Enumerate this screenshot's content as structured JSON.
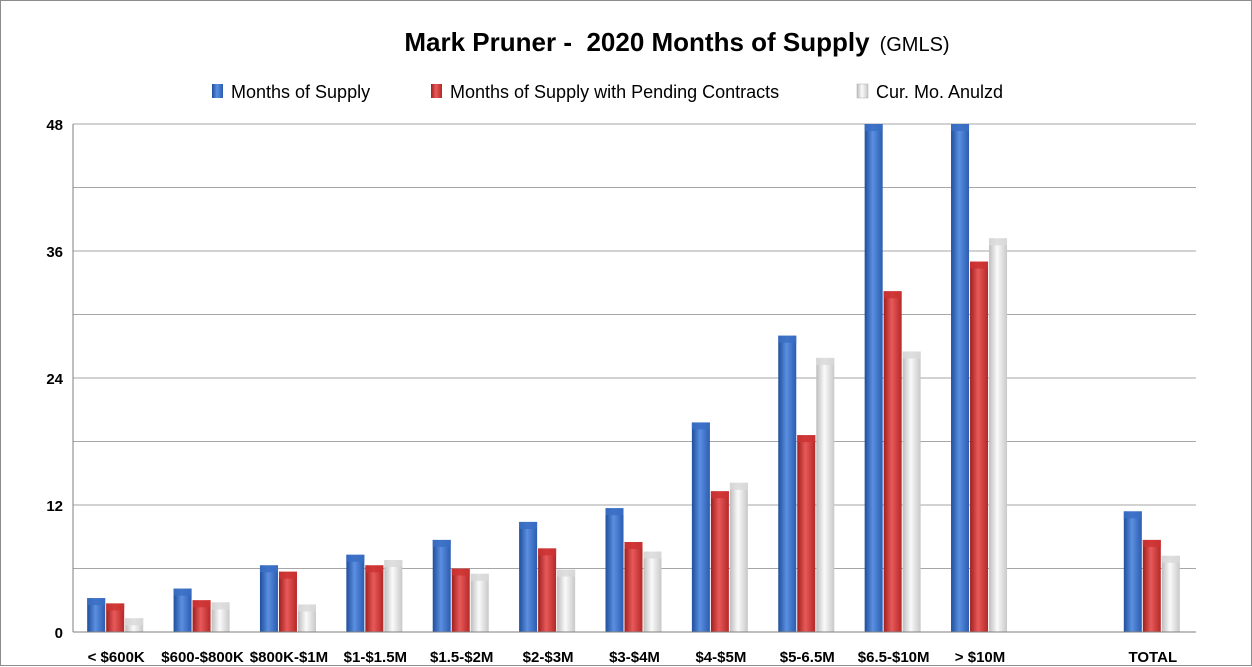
{
  "chart_data": {
    "type": "bar",
    "title": "Mark Pruner -  2020 Months of Supply",
    "title_suffix": "(GMLS)",
    "categories": [
      "< $600K",
      "$600-$800K",
      "$800K-$1M",
      "$1-$1.5M",
      "$1.5-$2M",
      "$2-$3M",
      "$3-$4M",
      "$4-$5M",
      "$5-6.5M",
      "$6.5-$10M",
      "> $10M",
      "",
      "TOTAL"
    ],
    "series": [
      {
        "name": "Months of Supply",
        "color": "#3a6fc4",
        "values": [
          3.2,
          4.1,
          6.3,
          7.3,
          8.7,
          10.4,
          11.7,
          19.8,
          28.0,
          48,
          48,
          null,
          11.4
        ]
      },
      {
        "name": "Months of Supply with Pending Contracts",
        "color": "#cc3333",
        "values": [
          2.7,
          3.0,
          5.7,
          6.3,
          6.0,
          7.9,
          8.5,
          13.3,
          18.6,
          32.2,
          35.0,
          null,
          8.7
        ]
      },
      {
        "name": "Cur. Mo. Anulzd",
        "color": "#d9d9d9",
        "values": [
          1.3,
          2.8,
          2.6,
          6.8,
          5.5,
          5.9,
          7.6,
          14.1,
          25.9,
          26.5,
          37.2,
          null,
          7.2
        ]
      }
    ],
    "ylim": [
      0,
      48
    ],
    "yticks": [
      "0",
      "12",
      "24",
      "36",
      "48"
    ],
    "grid": true,
    "legend_position": "top"
  }
}
